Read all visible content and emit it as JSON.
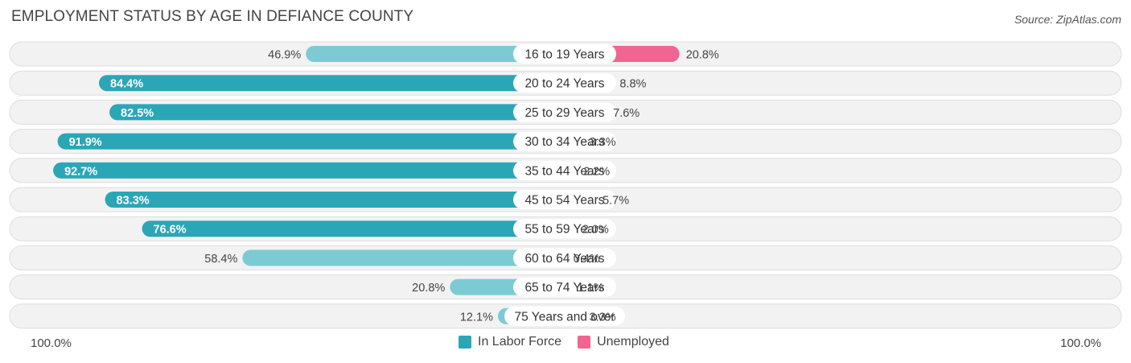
{
  "header": {
    "title": "EMPLOYMENT STATUS BY AGE IN DEFIANCE COUNTY",
    "source": "Source: ZipAtlas.com"
  },
  "axis": {
    "left_label": "100.0%",
    "right_label": "100.0%"
  },
  "legend": {
    "labor_label": "In Labor Force",
    "unemployed_label": "Unemployed"
  },
  "colors": {
    "labor_dark": "#2ba6b7",
    "labor_light": "#7ccbd4",
    "unemp_dark": "#f06592",
    "unemp_light": "#f6a8c1",
    "row_bg": "#f2f2f2",
    "row_border": "#dddddd"
  },
  "chart_data": {
    "type": "bar",
    "orientation": "horizontal-diverging",
    "title": "EMPLOYMENT STATUS BY AGE IN DEFIANCE COUNTY",
    "xlim": [
      -100,
      100
    ],
    "categories": [
      "16 to 19 Years",
      "20 to 24 Years",
      "25 to 29 Years",
      "30 to 34 Years",
      "35 to 44 Years",
      "45 to 54 Years",
      "55 to 59 Years",
      "60 to 64 Years",
      "65 to 74 Years",
      "75 Years and over"
    ],
    "series": [
      {
        "name": "In Labor Force",
        "values": [
          46.9,
          84.4,
          82.5,
          91.9,
          92.7,
          83.3,
          76.6,
          58.4,
          20.8,
          12.1
        ],
        "labels": [
          "46.9%",
          "84.4%",
          "82.5%",
          "91.9%",
          "92.7%",
          "83.3%",
          "76.6%",
          "58.4%",
          "20.8%",
          "12.1%"
        ]
      },
      {
        "name": "Unemployed",
        "values": [
          20.8,
          8.8,
          7.6,
          3.3,
          2.2,
          5.7,
          2.0,
          0.4,
          1.1,
          3.3
        ],
        "labels": [
          "20.8%",
          "8.8%",
          "7.6%",
          "3.3%",
          "2.2%",
          "5.7%",
          "2.0%",
          "0.4%",
          "1.1%",
          "3.3%"
        ]
      }
    ]
  }
}
